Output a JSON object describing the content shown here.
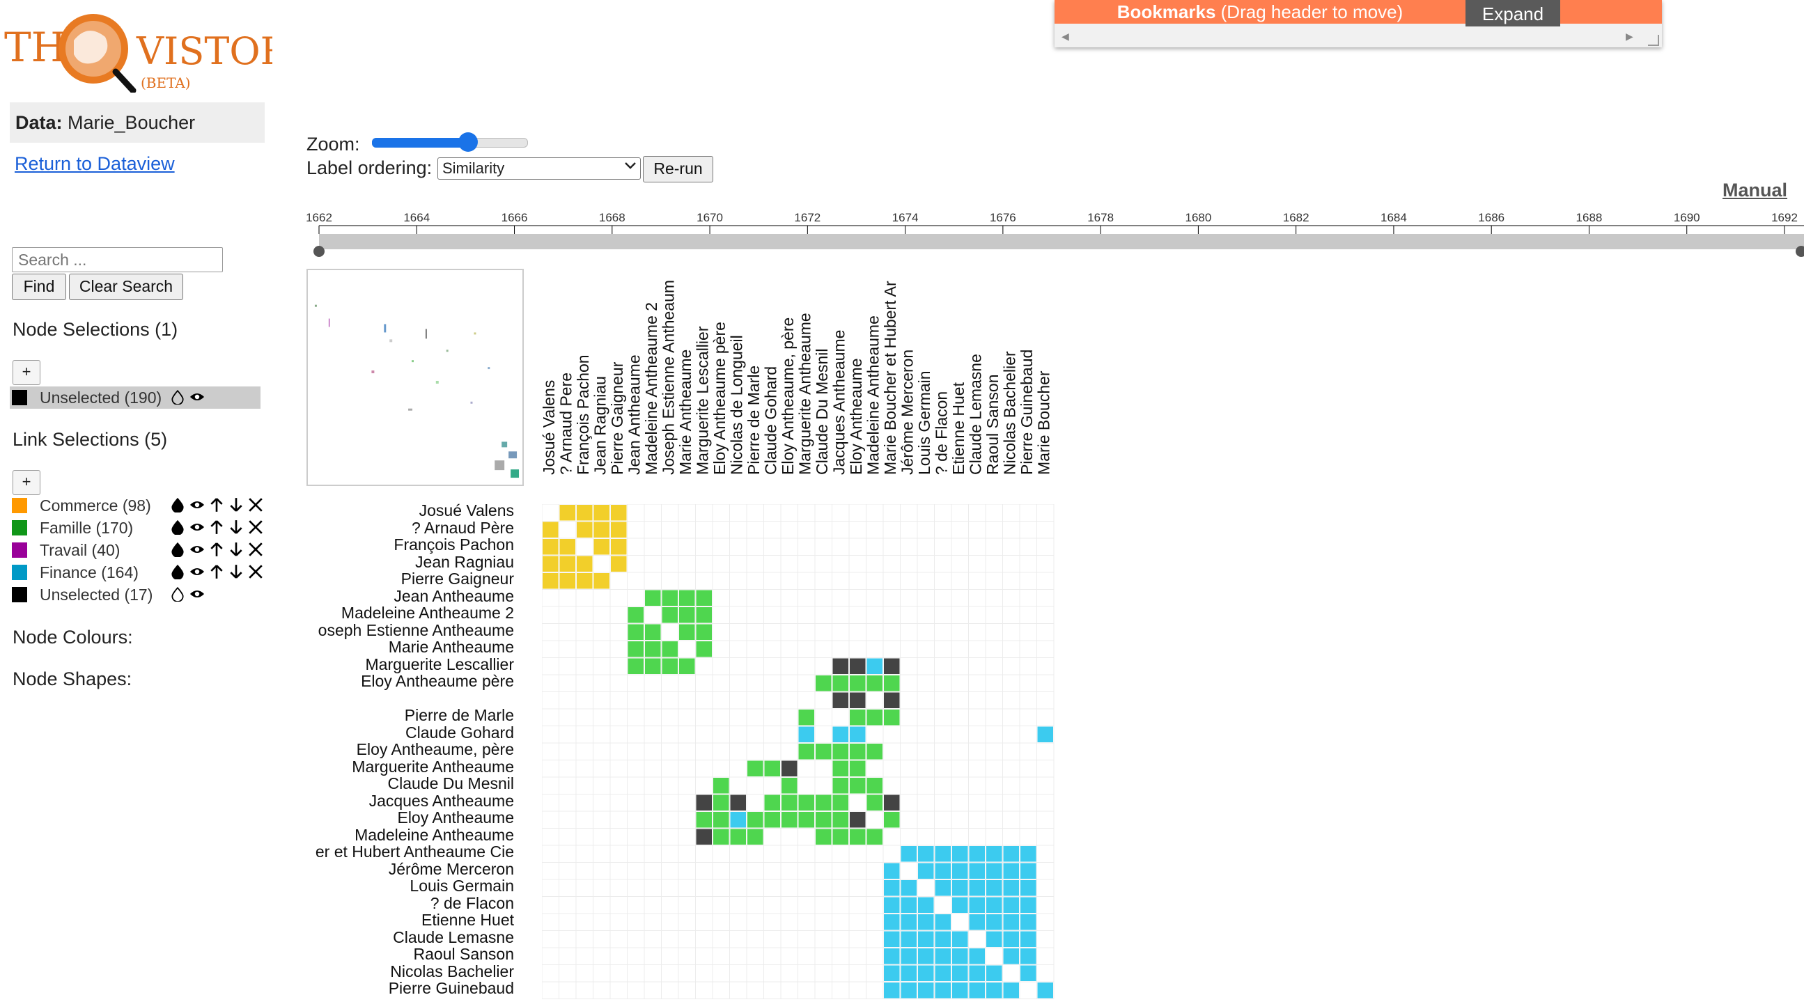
{
  "logo": {
    "left_text": "THE",
    "right_text": "VISTORIAN",
    "beta": "(BETA)"
  },
  "sidebar": {
    "data_label": "Data:",
    "data_value": "Marie_Boucher",
    "return_link": "Return to Dataview",
    "search_placeholder": "Search ...",
    "find_label": "Find",
    "clear_label": "Clear Search",
    "node_selections_title": "Node Selections (1)",
    "node_selections": [
      {
        "label": "Unselected (190)",
        "color": "#000000"
      }
    ],
    "link_selections_title": "Link Selections (5)",
    "link_selections": [
      {
        "label": "Commerce (98)",
        "color": "#ff9900"
      },
      {
        "label": "Famille (170)",
        "color": "#109618"
      },
      {
        "label": "Travail (40)",
        "color": "#990099"
      },
      {
        "label": "Finance (164)",
        "color": "#0099c6"
      },
      {
        "label": "Unselected (17)",
        "color": "#000000"
      }
    ],
    "plus_label": "+",
    "node_colours": "Node Colours:",
    "node_shapes": "Node Shapes:"
  },
  "controls": {
    "zoom_label": "Zoom:",
    "zoom_level": 0.62,
    "ordering_label": "Label ordering:",
    "ordering_value": "Similarity",
    "rerun_label": "Re-run",
    "manual_link": "Manual"
  },
  "bookmarks": {
    "title": "Bookmarks",
    "hint": "(Drag header to move)",
    "expand": "Expand"
  },
  "timeline": {
    "years": [
      "1662",
      "1664",
      "1666",
      "1668",
      "1670",
      "1672",
      "1674",
      "1676",
      "1678",
      "1680",
      "1682",
      "1684",
      "1686",
      "1688",
      "1690",
      "1692"
    ]
  },
  "matrix": {
    "columns": [
      "Josué Valens",
      "? Arnaud Pere",
      "François Pachon",
      "Jean Ragniau",
      "Pierre Gaigneur",
      "Jean Antheaume",
      "Madeleine Antheaume 2",
      "Joseph Estienne Antheaum",
      "Marie Antheaume",
      "Marguerite Lescallier",
      "Eloy Antheaume père",
      "Nicolas de Longueil",
      "Pierre de Marle",
      "Claude Gohard",
      "Eloy Antheaume, père",
      "Marguerite Antheaume",
      "Claude Du Mesnil",
      "Jacques Antheaume",
      "Eloy Antheaume",
      "Madeleine Antheaume",
      "Marie Boucher et Hubert Ar",
      "Jérôme Merceron",
      "Louis Germain",
      "? de Flacon",
      "Etienne Huet",
      "Claude Lemasne",
      "Raoul Sanson",
      "Nicolas Bachelier",
      "Pierre Guinebaud",
      "Marie Boucher"
    ],
    "rows": [
      "Josué Valens",
      "? Arnaud Père",
      "François Pachon",
      "Jean Ragniau",
      "Pierre Gaigneur",
      "Jean Antheaume",
      "Madeleine Antheaume 2",
      "oseph Estienne Antheaume",
      "Marie Antheaume",
      "Marguerite Lescallier",
      "Eloy Antheaume père",
      "",
      "Pierre de Marle",
      "Claude Gohard",
      "Eloy Antheaume, père",
      "Marguerite Antheaume",
      "Claude Du Mesnil",
      "Jacques Antheaume",
      "Eloy Antheaume",
      "Madeleine Antheaume",
      "er et Hubert Antheaume Cie",
      "Jérôme Merceron",
      "Louis Germain",
      "? de Flacon",
      "Etienne Huet",
      "Claude Lemasne",
      "Raoul Sanson",
      "Nicolas Bachelier",
      "Pierre Guinebaud"
    ]
  }
}
